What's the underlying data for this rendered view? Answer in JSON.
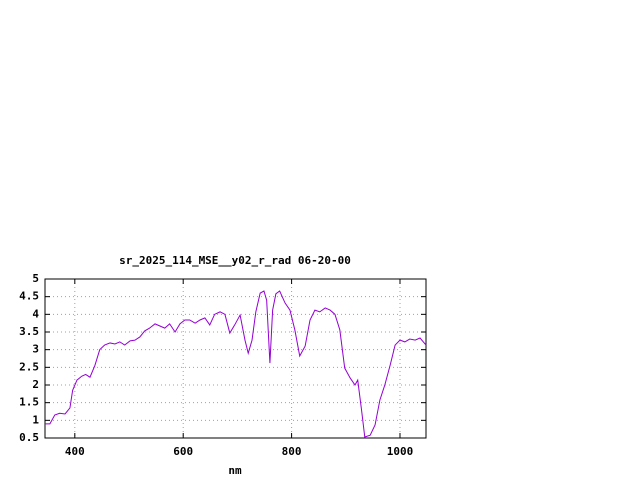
{
  "chart_data": {
    "type": "line",
    "title": "sr_2025_114_MSE__y02_r_rad 06-20-00",
    "x_label": "nm",
    "x": [
      345,
      354,
      363,
      372,
      382,
      391,
      396,
      404,
      413,
      420,
      428,
      437,
      446,
      455,
      465,
      474,
      483,
      492,
      502,
      511,
      520,
      529,
      538,
      548,
      557,
      566,
      575,
      585,
      594,
      603,
      612,
      622,
      631,
      640,
      649,
      658,
      668,
      677,
      686,
      695,
      705,
      714,
      720,
      727,
      734,
      742,
      749,
      754,
      760,
      765,
      771,
      778,
      788,
      797,
      806,
      815,
      825,
      834,
      843,
      852,
      862,
      871,
      880,
      889,
      898,
      908,
      917,
      922,
      929,
      935,
      945,
      954,
      963,
      972,
      982,
      991,
      1000,
      1009,
      1018,
      1028,
      1037,
      1048
    ],
    "series": [
      {
        "name": "sr_2025_114_MSE__y02_r_rad",
        "color": "#9400d3",
        "values": [
          0.9,
          0.9,
          1.15,
          1.2,
          1.18,
          1.35,
          1.85,
          2.14,
          2.25,
          2.3,
          2.22,
          2.55,
          3.0,
          3.13,
          3.19,
          3.16,
          3.22,
          3.13,
          3.25,
          3.27,
          3.36,
          3.53,
          3.61,
          3.73,
          3.67,
          3.61,
          3.73,
          3.5,
          3.73,
          3.84,
          3.84,
          3.75,
          3.84,
          3.9,
          3.7,
          4.0,
          4.07,
          4.0,
          3.47,
          3.7,
          3.98,
          3.27,
          2.9,
          3.27,
          4.07,
          4.6,
          4.66,
          4.4,
          2.62,
          4.12,
          4.58,
          4.66,
          4.32,
          4.12,
          3.56,
          2.82,
          3.1,
          3.84,
          4.12,
          4.07,
          4.18,
          4.12,
          4.0,
          3.56,
          2.48,
          2.2,
          2.0,
          2.14,
          1.3,
          0.53,
          0.58,
          0.87,
          1.58,
          2.0,
          2.57,
          3.13,
          3.27,
          3.22,
          3.3,
          3.27,
          3.33,
          3.13
        ]
      }
    ],
    "xlim": [
      345,
      1048
    ],
    "xticks": [
      400,
      600,
      800,
      1000
    ],
    "ylim": [
      0.5,
      5
    ],
    "yticks": [
      0.5,
      1,
      1.5,
      2,
      2.5,
      3,
      3.5,
      4,
      4.5,
      5
    ],
    "grid": true
  }
}
